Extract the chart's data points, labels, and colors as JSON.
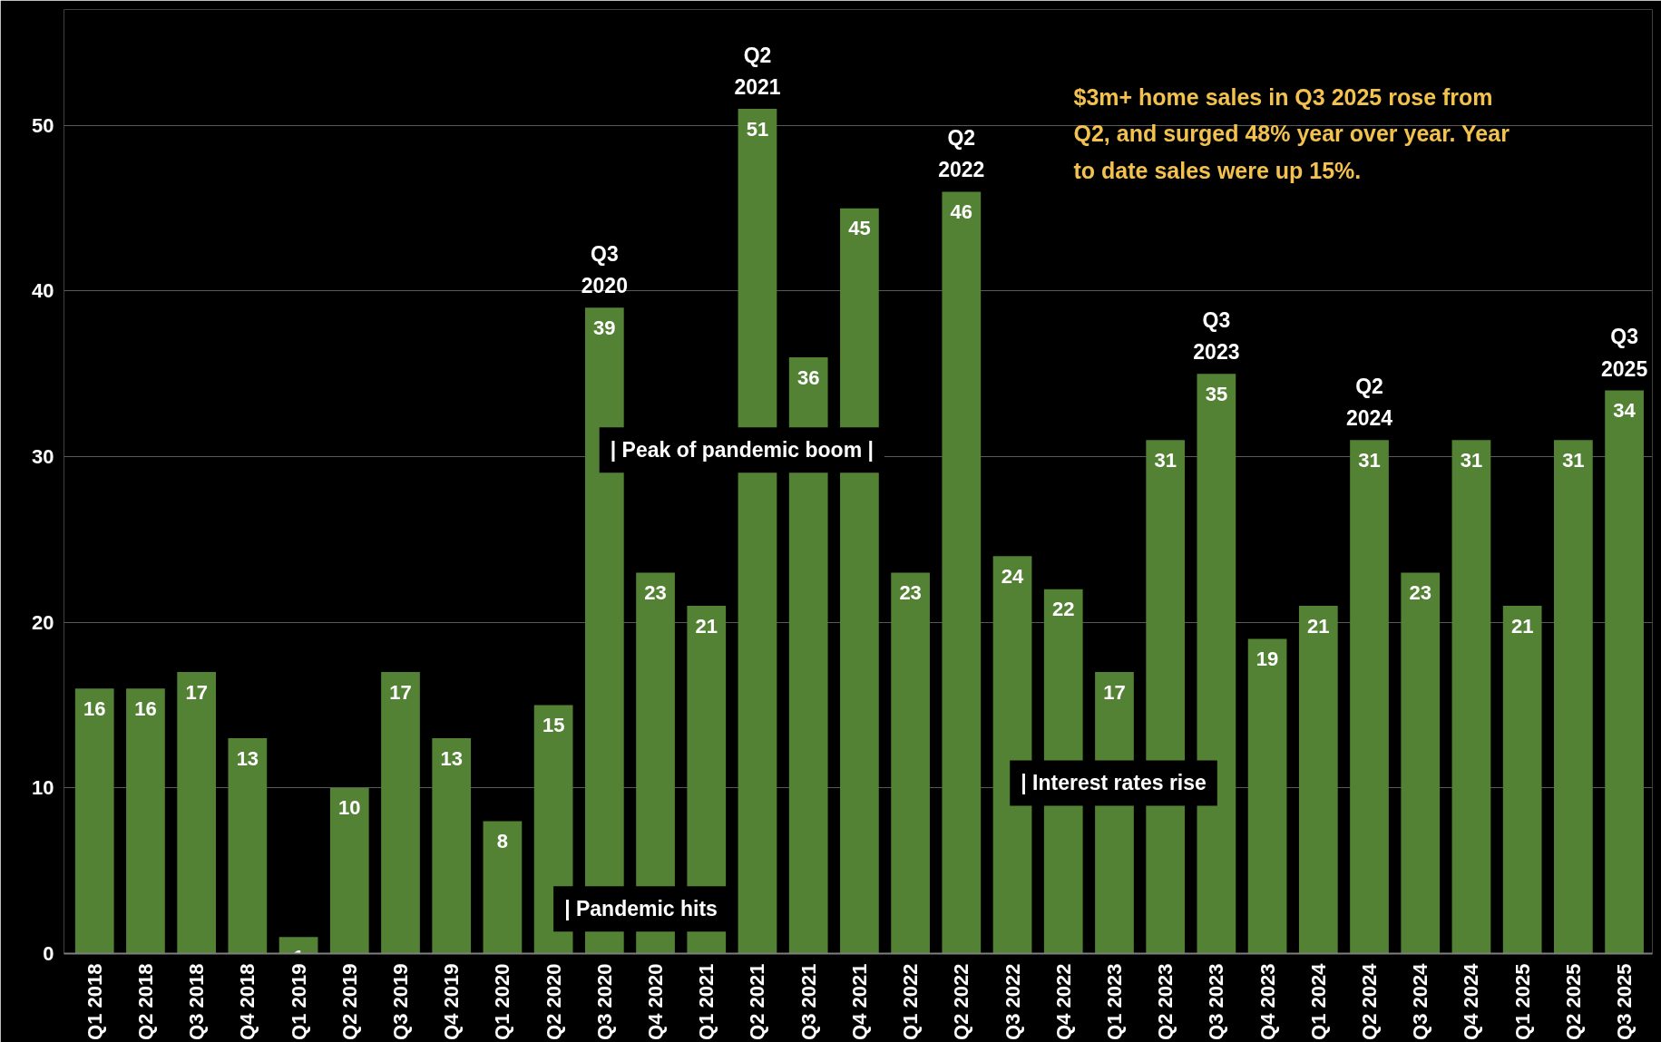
{
  "chart_data": {
    "type": "bar",
    "categories": [
      "Q1 2018",
      "Q2 2018",
      "Q3 2018",
      "Q4 2018",
      "Q1 2019",
      "Q2 2019",
      "Q3 2019",
      "Q4 2019",
      "Q1 2020",
      "Q2 2020",
      "Q3 2020",
      "Q4 2020",
      "Q1 2021",
      "Q2 2021",
      "Q3 2021",
      "Q4 2021",
      "Q1 2022",
      "Q2 2022",
      "Q3 2022",
      "Q4 2022",
      "Q1 2023",
      "Q2 2023",
      "Q3 2023",
      "Q4 2023",
      "Q1 2024",
      "Q2 2024",
      "Q3 2024",
      "Q4 2024",
      "Q1 2025",
      "Q2 2025",
      "Q3 2025"
    ],
    "values": [
      16,
      16,
      17,
      13,
      1,
      10,
      17,
      13,
      8,
      15,
      39,
      23,
      21,
      51,
      36,
      45,
      23,
      46,
      24,
      22,
      17,
      31,
      35,
      19,
      21,
      31,
      23,
      31,
      21,
      31,
      34
    ],
    "color": "#548235",
    "ylim": [
      0,
      57
    ],
    "yticks": [
      0,
      10,
      20,
      30,
      40,
      50
    ],
    "grid": "y",
    "data_labels": true,
    "annotations": [
      {
        "text": "Q3\n2020",
        "x": "Q3 2020",
        "y": 39
      },
      {
        "text": "Q2\n2021",
        "x": "Q2 2021",
        "y": 51
      },
      {
        "text": "Q2\n2022",
        "x": "Q2 2022",
        "y": 46
      },
      {
        "text": "Q3\n2023",
        "x": "Q3 2023",
        "y": 35
      },
      {
        "text": "Q2\n2024",
        "x": "Q2 2024",
        "y": 31
      },
      {
        "text": "Q3\n2025",
        "x": "Q3 2025",
        "y": 34
      },
      "| Pandemic hits",
      "| Peak of pandemic boom |",
      "| Interest rates rise",
      "$3m+  home sales in Q3 2025 rose from\nQ2, and surged 48% year over year. Year\nto date sales were up 15%."
    ]
  }
}
